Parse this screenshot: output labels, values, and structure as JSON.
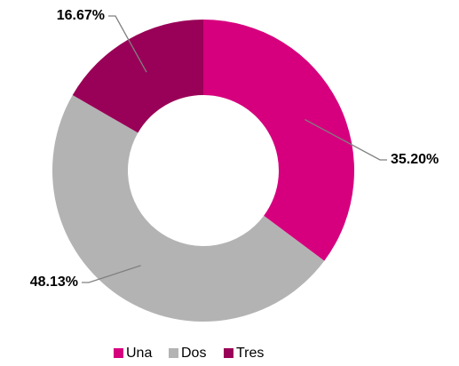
{
  "chart_data": {
    "type": "donut",
    "categories": [
      "Una",
      "Dos",
      "Tres"
    ],
    "values": [
      35.2,
      48.13,
      16.67
    ],
    "value_labels": [
      "35.20%",
      "48.13%",
      "16.67%"
    ],
    "colors": [
      "#d6007e",
      "#b3b3b3",
      "#990057"
    ],
    "legend": "bottom"
  }
}
